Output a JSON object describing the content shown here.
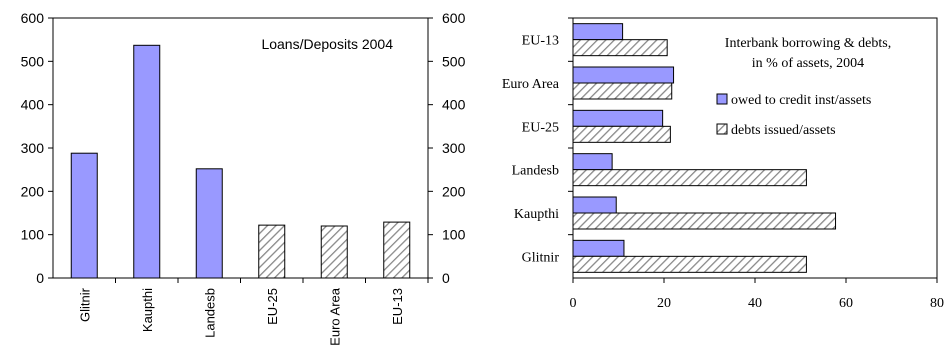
{
  "colors": {
    "solid_fill": "#9999ff",
    "hatch_stroke": "#888888",
    "axis": "#000000"
  },
  "chart_data": [
    {
      "type": "bar",
      "title": "Loans/Deposits 2004",
      "xlabel": "",
      "ylabel": "",
      "categories": [
        "Glitnir",
        "Kaupthi",
        "Landesb",
        "EU-25",
        "Euro Area",
        "EU-13"
      ],
      "values": [
        288,
        537,
        252,
        122,
        120,
        129
      ],
      "fill_styles": [
        "solid",
        "solid",
        "solid",
        "hatched",
        "hatched",
        "hatched"
      ],
      "ylim": [
        0,
        600
      ],
      "yticks": [
        0,
        100,
        200,
        300,
        400,
        500,
        600
      ],
      "ytick_labels": [
        "0",
        "100",
        "200",
        "300",
        "400",
        "500",
        "600"
      ],
      "grid": false,
      "legend": false
    },
    {
      "type": "bar",
      "orientation": "horizontal",
      "title": "Interbank borrowing & debts,",
      "title_line2": "in % of assets, 2004",
      "xlabel": "",
      "ylabel": "",
      "categories": [
        "EU-13",
        "Euro Area",
        "EU-25",
        "Landesb",
        "Kaupthi",
        "Glitnir"
      ],
      "series": [
        {
          "name": "owed to credit inst/assets",
          "style": "solid",
          "values": [
            10.9,
            22.1,
            19.7,
            8.6,
            9.5,
            11.2
          ]
        },
        {
          "name": "debts issued/assets",
          "style": "hatched",
          "values": [
            20.7,
            21.7,
            21.4,
            51.3,
            57.7,
            51.3
          ]
        }
      ],
      "xlim": [
        0,
        80
      ],
      "xticks": [
        0,
        20,
        40,
        60,
        80
      ],
      "xtick_labels": [
        "0",
        "20",
        "40",
        "60",
        "80"
      ],
      "grid": false,
      "legend_placement": "top-right"
    }
  ]
}
